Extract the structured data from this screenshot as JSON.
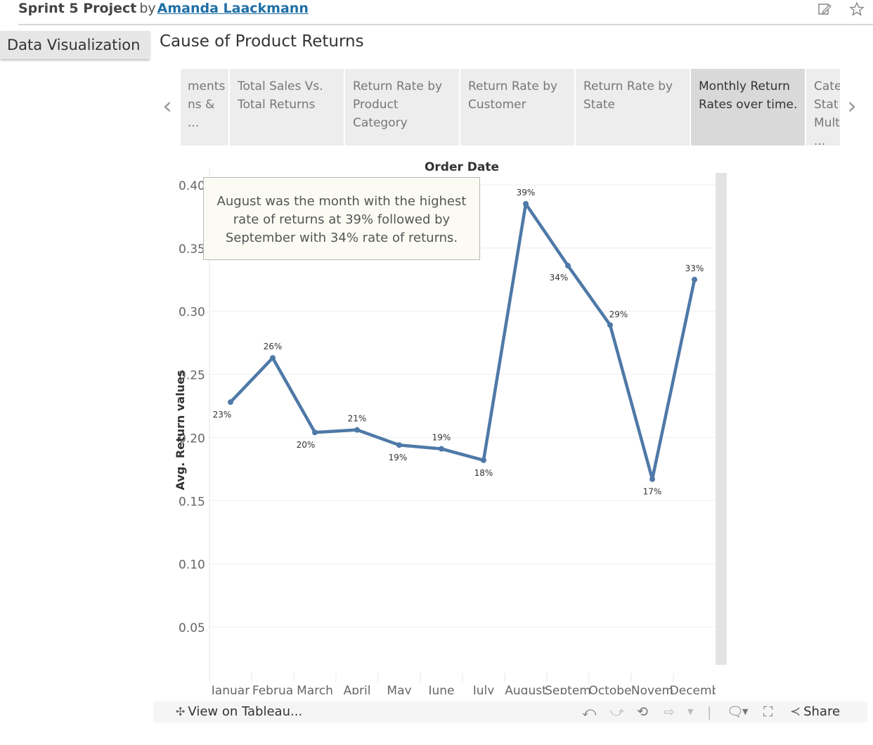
{
  "header": {
    "project": "Sprint 5 Project",
    "by": "by",
    "author": "Amanda Laackmann"
  },
  "sidebar_button": "Data Visualization",
  "story_title": "Cause of Product Returns",
  "tabs": [
    {
      "lines": [
        "ments",
        "ns &",
        "..."
      ]
    },
    {
      "lines": [
        "Total Sales Vs.",
        "Total Returns"
      ]
    },
    {
      "lines": [
        "Return Rate by",
        "Product",
        "Category"
      ]
    },
    {
      "lines": [
        "Return Rate by",
        "Customer"
      ]
    },
    {
      "lines": [
        "Return Rate by",
        "State"
      ]
    },
    {
      "lines": [
        "Monthly Return",
        "Rates over time."
      ],
      "active": true
    },
    {
      "lines": [
        "Cate",
        "Stat",
        "Mult",
        "..."
      ]
    }
  ],
  "annotation": {
    "line1": "August was the month with the highest",
    "line2": "rate of returns at 39% followed by",
    "line3": "September with 34% rate of returns."
  },
  "toolbar": {
    "view": "View on Tableau...",
    "share": "Share"
  },
  "icons": {
    "edit": "edit-icon",
    "favorite": "star-icon",
    "prev": "chevron-left-icon",
    "next": "chevron-right-icon"
  },
  "chart_data": {
    "type": "line",
    "title": "Order Date",
    "ylabel": "Avg. Return values",
    "categories": [
      "Januar",
      "Februa",
      "March",
      "April",
      "May",
      "June",
      "July",
      "August",
      "Septem",
      "Octobe",
      "Novem",
      "Decemb"
    ],
    "values": [
      0.228,
      0.263,
      0.204,
      0.206,
      0.194,
      0.191,
      0.182,
      0.385,
      0.336,
      0.289,
      0.167,
      0.325
    ],
    "labels": [
      "23%",
      "26%",
      "20%",
      "21%",
      "19%",
      "19%",
      "18%",
      "39%",
      "34%",
      "29%",
      "17%",
      "33%"
    ],
    "ylim": [
      0,
      0.4
    ],
    "yticks": [
      "0.05",
      "0.10",
      "0.15",
      "0.20",
      "0.25",
      "0.30",
      "0.35",
      "0.40"
    ],
    "color": "#4e79a7",
    "grid": true
  }
}
